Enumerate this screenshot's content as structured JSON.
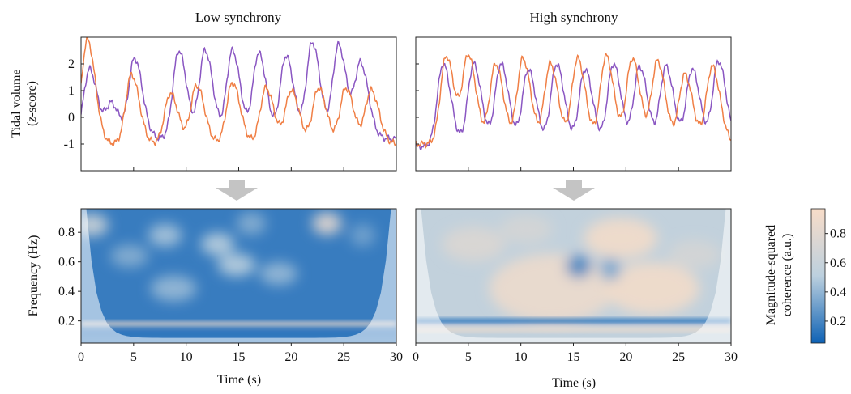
{
  "figure": {
    "panel_titles": [
      "Low synchrony",
      "High synchrony"
    ],
    "top_ylabel_line1": "Tidal volume",
    "top_ylabel_line2": "(",
    "top_ylabel_italic": "z",
    "top_ylabel_line2_rest": "-score)",
    "bottom_ylabel": "Frequency (Hz)",
    "xlabel": "Time (s)",
    "colorbar_label_line1": "Magnitude-squared",
    "colorbar_label_line2": "coherence (a.u.)",
    "colors": {
      "series_purple": "#8a56c2",
      "series_orange": "#f07f45",
      "coh_low": "#0e62b5",
      "coh_mid": "#bcd0de",
      "coh_high": "#f8dcc8",
      "arrow": "#c4c4c4",
      "cone_mask": "#ffffff"
    }
  },
  "chart_data": [
    {
      "type": "line",
      "panel": "Low synchrony",
      "title": "Low synchrony",
      "ylabel": "Tidal volume (z-score)",
      "yticks": [
        -1,
        0,
        1,
        2
      ],
      "ylim": [
        -2.0,
        3.0
      ],
      "xlim": [
        0,
        30
      ],
      "series": [
        {
          "color": "#8a56c2",
          "peaks": [
            0.8,
            2.9,
            5.1,
            9.3,
            11.8,
            14.4,
            16.9,
            19.5,
            22.0,
            24.5,
            26.6
          ],
          "amp": [
            1.8,
            0.5,
            2.2,
            2.5,
            2.5,
            2.5,
            2.4,
            2.3,
            2.8,
            2.7,
            2.0
          ],
          "base": -0.8
        },
        {
          "color": "#f07f45",
          "peaks": [
            0.6,
            4.8,
            8.5,
            11.0,
            14.4,
            17.6,
            20.0,
            22.6,
            25.2,
            27.6
          ],
          "amp": [
            2.9,
            1.6,
            0.9,
            1.2,
            1.3,
            1.1,
            1.0,
            1.1,
            1.1,
            1.0
          ],
          "base": -1.0
        }
      ]
    },
    {
      "type": "line",
      "panel": "High synchrony",
      "title": "High synchrony",
      "yticks": [
        -1,
        0,
        1,
        2
      ],
      "ylim": [
        -2.0,
        3.0
      ],
      "xlim": [
        0,
        30
      ],
      "series": [
        {
          "color": "#8a56c2",
          "peaks": [
            2.6,
            5.5,
            8.1,
            10.7,
            13.4,
            16.1,
            18.8,
            21.3,
            23.8,
            26.3,
            28.8
          ],
          "amp": [
            2.0,
            2.0,
            2.0,
            1.8,
            2.0,
            1.8,
            2.0,
            1.9,
            1.9,
            1.8,
            2.1
          ],
          "base": -1.1
        },
        {
          "color": "#f07f45",
          "peaks": [
            2.9,
            5.0,
            7.6,
            10.2,
            12.8,
            15.4,
            18.1,
            20.6,
            23.0,
            25.6,
            28.2
          ],
          "amp": [
            2.3,
            2.3,
            2.0,
            2.2,
            2.0,
            2.2,
            2.3,
            2.2,
            2.1,
            1.6,
            1.9
          ],
          "base": -1.0
        }
      ]
    },
    {
      "type": "heatmap",
      "panel": "Low synchrony",
      "xlabel": "Time (s)",
      "ylabel": "Frequency (Hz)",
      "xlim": [
        0,
        30
      ],
      "ylim": [
        0.05,
        0.96
      ],
      "xticks": [
        0,
        5,
        10,
        15,
        20,
        25,
        30
      ],
      "yticks": [
        0.2,
        0.4,
        0.6,
        0.8
      ],
      "blobs": [
        {
          "t": 1.0,
          "f": 0.85,
          "r": 1.6,
          "v": 0.65
        },
        {
          "t": 4.6,
          "f": 0.64,
          "r": 1.8,
          "v": 0.35
        },
        {
          "t": 8.0,
          "f": 0.78,
          "r": 1.6,
          "v": 0.45
        },
        {
          "t": 8.8,
          "f": 0.42,
          "r": 2.2,
          "v": 0.4
        },
        {
          "t": 13.0,
          "f": 0.72,
          "r": 1.6,
          "v": 0.5
        },
        {
          "t": 14.8,
          "f": 0.58,
          "r": 1.8,
          "v": 0.5
        },
        {
          "t": 16.2,
          "f": 0.86,
          "r": 1.4,
          "v": 0.35
        },
        {
          "t": 18.8,
          "f": 0.52,
          "r": 1.8,
          "v": 0.4
        },
        {
          "t": 23.4,
          "f": 0.86,
          "r": 1.4,
          "v": 0.85
        },
        {
          "t": 26.8,
          "f": 0.78,
          "r": 1.2,
          "v": 0.3
        }
      ],
      "bands": [
        {
          "f": 0.18,
          "w": 0.025,
          "v": 0.95
        },
        {
          "f": 0.11,
          "w": 0.03,
          "v": 0.08
        }
      ],
      "colorbar": {
        "ticks": [
          0.2,
          0.4,
          0.6,
          0.8
        ],
        "range": [
          0.05,
          0.97
        ]
      }
    },
    {
      "type": "heatmap",
      "panel": "High synchrony",
      "xlabel": "Time (s)",
      "xlim": [
        0,
        30
      ],
      "ylim": [
        0.05,
        0.96
      ],
      "xticks": [
        0,
        5,
        10,
        15,
        20,
        25,
        30
      ],
      "blobs": [
        {
          "t": 5.5,
          "f": 0.72,
          "r": 3.0,
          "v": 0.75
        },
        {
          "t": 10.5,
          "f": 0.82,
          "r": 2.5,
          "v": 0.7
        },
        {
          "t": 13.0,
          "f": 0.42,
          "r": 6.0,
          "v": 0.9
        },
        {
          "t": 19.5,
          "f": 0.76,
          "r": 3.5,
          "v": 0.95
        },
        {
          "t": 22.5,
          "f": 0.42,
          "r": 4.5,
          "v": 0.95
        },
        {
          "t": 26.5,
          "f": 0.65,
          "r": 2.5,
          "v": 0.7
        },
        {
          "t": 15.5,
          "f": 0.57,
          "r": 1.2,
          "v": 0.15
        },
        {
          "t": 18.5,
          "f": 0.55,
          "r": 1.0,
          "v": 0.3
        }
      ],
      "bands": [
        {
          "f": 0.2,
          "w": 0.03,
          "v": 0.05
        },
        {
          "f": 0.14,
          "w": 0.02,
          "v": 0.95
        }
      ],
      "colorbar": {
        "ticks": [
          0.2,
          0.4,
          0.6,
          0.8
        ],
        "range": [
          0.05,
          0.97
        ]
      }
    }
  ]
}
